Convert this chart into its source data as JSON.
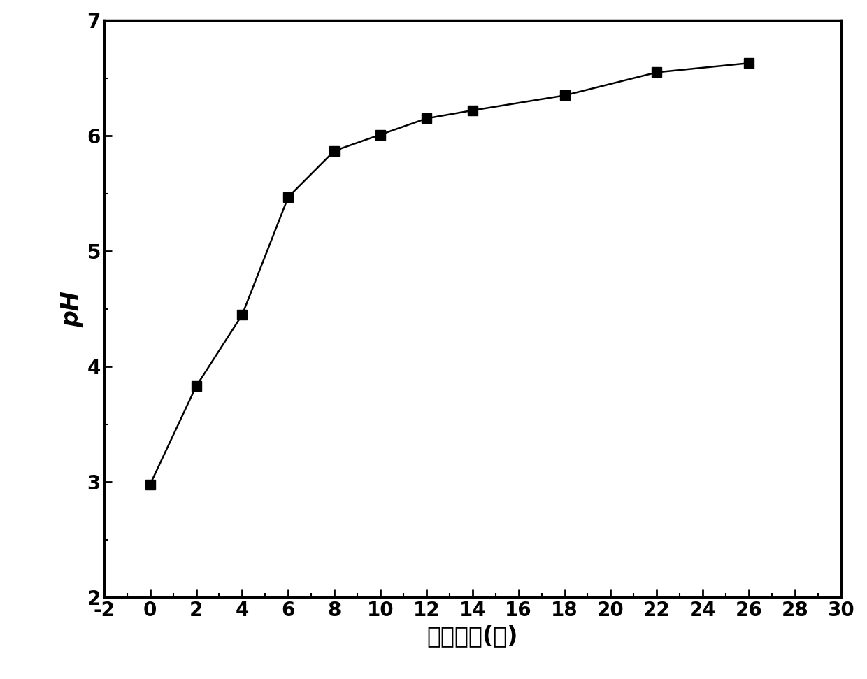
{
  "x": [
    0,
    2,
    4,
    6,
    8,
    10,
    12,
    14,
    18,
    22,
    26
  ],
  "y": [
    2.98,
    3.83,
    4.45,
    5.47,
    5.87,
    6.01,
    6.15,
    6.22,
    6.35,
    6.55,
    6.63
  ],
  "xlabel": "培养时间(天)",
  "ylabel": "pH",
  "xlim": [
    -2,
    30
  ],
  "ylim": [
    2,
    7
  ],
  "xticks": [
    -2,
    0,
    2,
    4,
    6,
    8,
    10,
    12,
    14,
    16,
    18,
    20,
    22,
    24,
    26,
    28,
    30
  ],
  "yticks": [
    2,
    3,
    4,
    5,
    6,
    7
  ],
  "line_color": "#000000",
  "marker_color": "#000000",
  "marker": "s",
  "marker_size": 10,
  "line_width": 1.8,
  "background_color": "#ffffff",
  "tick_fontsize": 20,
  "label_fontsize": 24,
  "spine_linewidth": 2.5
}
